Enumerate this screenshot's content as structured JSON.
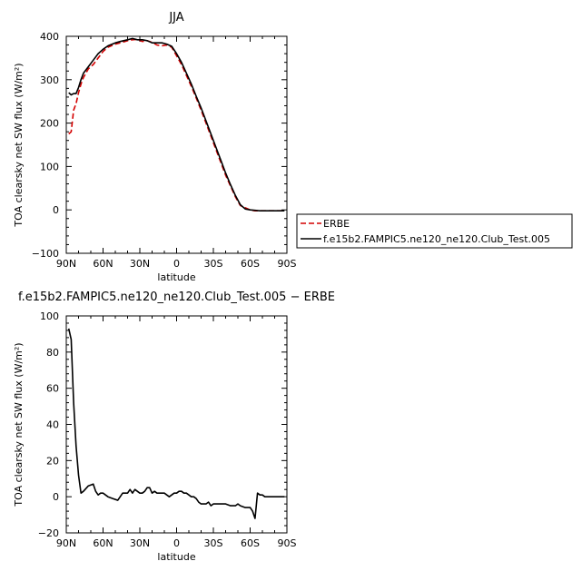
{
  "chart_data": [
    {
      "type": "line",
      "title": "JJA",
      "xlabel": "latitude",
      "ylabel": "TOA clearsky net SW flux (W/m²)",
      "xlim": [
        90,
        -90
      ],
      "ylim": [
        -100,
        400
      ],
      "x_ticks": [
        90,
        60,
        30,
        0,
        -30,
        -60,
        -90
      ],
      "x_tick_labels": [
        "90N",
        "60N",
        "30N",
        "0",
        "30S",
        "60S",
        "90S"
      ],
      "y_ticks": [
        -100,
        0,
        100,
        200,
        300,
        400
      ],
      "y_tick_labels": [
        "−100",
        "0",
        "100",
        "200",
        "300",
        "400"
      ],
      "legend_placement": "right",
      "series": [
        {
          "name": "ERBE",
          "color": "#d40000",
          "dash": "dashed",
          "x": [
            88,
            86,
            84,
            82,
            80,
            78,
            76,
            72,
            68,
            64,
            60,
            56,
            50,
            46,
            40,
            36,
            32,
            28,
            24,
            20,
            16,
            12,
            8,
            4,
            0,
            -4,
            -8,
            -12,
            -16,
            -20,
            -24,
            -28,
            -32,
            -36,
            -40,
            -44,
            -48,
            -52,
            -56,
            -60,
            -64,
            -68,
            -70,
            -72,
            -76,
            -80,
            -84,
            -88
          ],
          "y": [
            175,
            180,
            230,
            245,
            270,
            290,
            305,
            325,
            335,
            350,
            365,
            375,
            382,
            385,
            390,
            392,
            393,
            388,
            390,
            386,
            380,
            378,
            380,
            375,
            355,
            335,
            310,
            285,
            258,
            230,
            200,
            170,
            140,
            110,
            80,
            55,
            30,
            10,
            5,
            0,
            -2,
            -2,
            -2,
            -2,
            -2,
            -2,
            -2,
            -2
          ]
        },
        {
          "name": "f.e15b2.FAMPIC5.ne120_ne120.Club_Test.005",
          "color": "#000000",
          "dash": "solid",
          "x": [
            88,
            86,
            84,
            82,
            80,
            78,
            76,
            72,
            68,
            64,
            60,
            56,
            50,
            46,
            40,
            36,
            32,
            28,
            24,
            20,
            16,
            12,
            8,
            4,
            0,
            -4,
            -8,
            -12,
            -16,
            -20,
            -24,
            -28,
            -32,
            -36,
            -40,
            -44,
            -48,
            -52,
            -56,
            -60,
            -64,
            -68,
            -70,
            -72,
            -76,
            -80,
            -84,
            -88
          ],
          "y": [
            270,
            265,
            268,
            268,
            282,
            300,
            315,
            330,
            345,
            360,
            370,
            378,
            385,
            388,
            392,
            395,
            392,
            392,
            390,
            385,
            385,
            385,
            382,
            377,
            360,
            340,
            315,
            290,
            262,
            235,
            205,
            175,
            145,
            115,
            85,
            58,
            33,
            12,
            2,
            0,
            -1,
            -2,
            -2,
            -2,
            -2,
            -2,
            -2,
            -2
          ]
        }
      ]
    },
    {
      "type": "line",
      "title": "f.e15b2.FAMPIC5.ne120_ne120.Club_Test.005 − ERBE",
      "xlabel": "latitude",
      "ylabel": "TOA clearsky net SW flux (W/m²)",
      "xlim": [
        90,
        -90
      ],
      "ylim": [
        -20,
        100
      ],
      "x_ticks": [
        90,
        60,
        30,
        0,
        -30,
        -60,
        -90
      ],
      "x_tick_labels": [
        "90N",
        "60N",
        "30N",
        "0",
        "30S",
        "60S",
        "90S"
      ],
      "y_ticks": [
        -20,
        0,
        20,
        40,
        60,
        80,
        100
      ],
      "y_tick_labels": [
        "−20",
        "0",
        "20",
        "40",
        "60",
        "80",
        "100"
      ],
      "series": [
        {
          "color": "#000000",
          "dash": "solid",
          "x": [
            88,
            86,
            84,
            82,
            80,
            78,
            76,
            72,
            68,
            66,
            64,
            62,
            60,
            58,
            56,
            52,
            48,
            44,
            40,
            38,
            36,
            34,
            32,
            30,
            28,
            26,
            24,
            22,
            20,
            18,
            16,
            14,
            12,
            10,
            8,
            6,
            4,
            2,
            0,
            -2,
            -4,
            -6,
            -8,
            -10,
            -12,
            -14,
            -16,
            -18,
            -20,
            -22,
            -24,
            -26,
            -28,
            -30,
            -32,
            -36,
            -40,
            -44,
            -48,
            -50,
            -52,
            -56,
            -60,
            -62,
            -64,
            -66,
            -68,
            -70,
            -72,
            -76,
            -80,
            -84,
            -88
          ],
          "y": [
            93,
            87,
            52,
            28,
            12,
            2,
            3,
            6,
            7,
            3,
            1,
            2,
            2,
            1,
            0,
            -1,
            -2,
            2,
            2,
            4,
            2,
            4,
            3,
            2,
            2,
            3,
            5,
            5,
            2,
            3,
            2,
            2,
            2,
            2,
            1,
            0,
            1,
            2,
            2,
            3,
            3,
            2,
            2,
            1,
            0,
            0,
            -1,
            -3,
            -4,
            -4,
            -4,
            -3,
            -5,
            -4,
            -4,
            -4,
            -4,
            -5,
            -5,
            -4,
            -5,
            -6,
            -6,
            -8,
            -12,
            2,
            1,
            1,
            0,
            0,
            0,
            0,
            0
          ]
        }
      ]
    }
  ]
}
